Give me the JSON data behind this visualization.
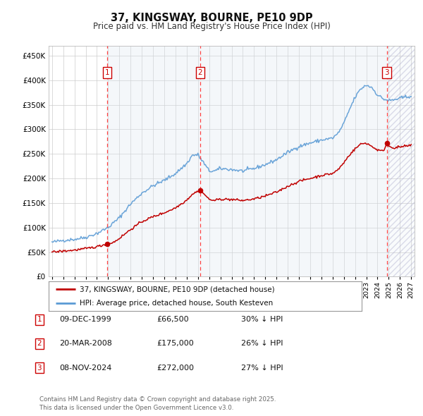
{
  "title": "37, KINGSWAY, BOURNE, PE10 9DP",
  "subtitle": "Price paid vs. HM Land Registry's House Price Index (HPI)",
  "ylim": [
    0,
    470000
  ],
  "yticks": [
    0,
    50000,
    100000,
    150000,
    200000,
    250000,
    300000,
    350000,
    400000,
    450000
  ],
  "ytick_labels": [
    "£0",
    "£50K",
    "£100K",
    "£150K",
    "£200K",
    "£250K",
    "£300K",
    "£350K",
    "£400K",
    "£450K"
  ],
  "sale_years_decimal": [
    1999.917,
    2008.208,
    2024.833
  ],
  "sale_prices": [
    66500,
    175000,
    272000
  ],
  "sale_labels": [
    "1",
    "2",
    "3"
  ],
  "hpi_color": "#5b9bd5",
  "price_color": "#c00000",
  "shade_color": "#dce6f1",
  "legend_label_price": "37, KINGSWAY, BOURNE, PE10 9DP (detached house)",
  "legend_label_hpi": "HPI: Average price, detached house, South Kesteven",
  "table_data": [
    [
      "1",
      "09-DEC-1999",
      "£66,500",
      "30% ↓ HPI"
    ],
    [
      "2",
      "20-MAR-2008",
      "£175,000",
      "26% ↓ HPI"
    ],
    [
      "3",
      "08-NOV-2024",
      "£272,000",
      "27% ↓ HPI"
    ]
  ],
  "footer": "Contains HM Land Registry data © Crown copyright and database right 2025.\nThis data is licensed under the Open Government Licence v3.0.",
  "background_color": "#ffffff",
  "grid_color": "#cccccc",
  "xlim_left": 1994.7,
  "xlim_right": 2027.3
}
